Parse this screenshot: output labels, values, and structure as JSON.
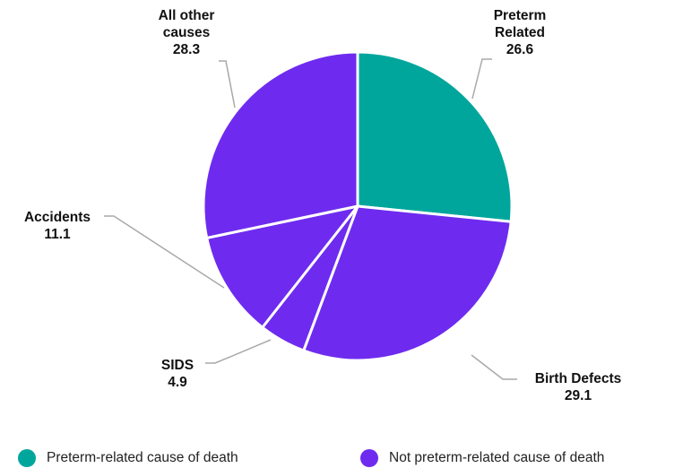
{
  "chart_data": {
    "type": "pie",
    "slices": [
      {
        "label_lines": [
          "Preterm",
          "Related"
        ],
        "value_text": "26.6",
        "value": 26.6,
        "group": "preterm"
      },
      {
        "label_lines": [
          "Birth Defects"
        ],
        "value_text": "29.1",
        "value": 29.1,
        "group": "not_preterm"
      },
      {
        "label_lines": [
          "SIDS"
        ],
        "value_text": "4.9",
        "value": 4.9,
        "group": "not_preterm"
      },
      {
        "label_lines": [
          "Accidents"
        ],
        "value_text": "11.1",
        "value": 11.1,
        "group": "not_preterm"
      },
      {
        "label_lines": [
          "All other",
          "causes"
        ],
        "value_text": "28.3",
        "value": 28.3,
        "group": "not_preterm"
      }
    ],
    "legend": [
      {
        "key": "preterm",
        "label": "Preterm-related cause of death",
        "color": "#00a69c"
      },
      {
        "key": "not_preterm",
        "label": "Not preterm-related cause of death",
        "color": "#6e2bef"
      }
    ],
    "start_angle_deg": 0,
    "direction": "clockwise",
    "legend_position": "bottom"
  }
}
